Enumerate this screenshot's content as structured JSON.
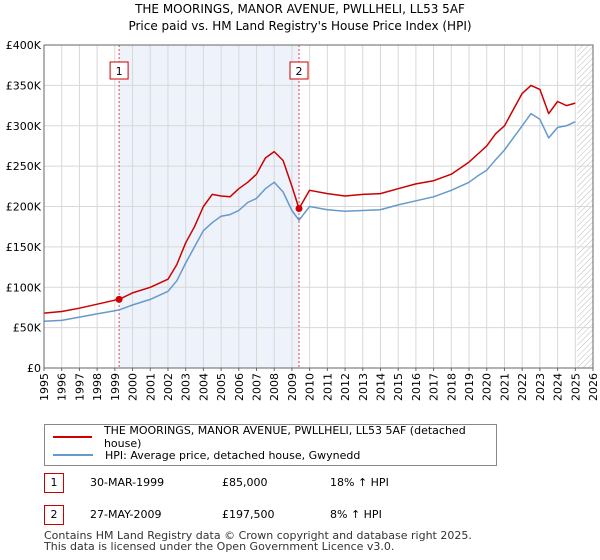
{
  "chart_data": {
    "type": "line",
    "title": "THE MOORINGS, MANOR AVENUE, PWLLHELI, LL53 5AF",
    "subtitle": "Price paid vs. HM Land Registry's House Price Index (HPI)",
    "xlabel": "",
    "ylabel": "",
    "xlim": [
      1995,
      2026
    ],
    "ylim": [
      0,
      400000
    ],
    "x_ticks": [
      "1995",
      "1996",
      "1997",
      "1998",
      "1999",
      "2000",
      "2001",
      "2002",
      "2003",
      "2004",
      "2005",
      "2006",
      "2007",
      "2008",
      "2009",
      "2010",
      "2011",
      "2012",
      "2013",
      "2014",
      "2015",
      "2016",
      "2017",
      "2018",
      "2019",
      "2020",
      "2021",
      "2022",
      "2023",
      "2024",
      "2025",
      "2026"
    ],
    "y_ticks": [
      {
        "value": 0,
        "label": "£0"
      },
      {
        "value": 50000,
        "label": "£50K"
      },
      {
        "value": 100000,
        "label": "£100K"
      },
      {
        "value": 150000,
        "label": "£150K"
      },
      {
        "value": 200000,
        "label": "£200K"
      },
      {
        "value": 250000,
        "label": "£250K"
      },
      {
        "value": 300000,
        "label": "£300K"
      },
      {
        "value": 350000,
        "label": "£350K"
      },
      {
        "value": 400000,
        "label": "£400K"
      }
    ],
    "grid": true,
    "shaded_period": [
      1999.24,
      2009.4
    ],
    "future_hatch_from": 2025.1,
    "series": [
      {
        "name": "THE MOORINGS, MANOR AVENUE, PWLLHELI, LL53 5AF (detached house)",
        "color": "#cc0000",
        "x": [
          1995.0,
          1996.0,
          1997.0,
          1998.0,
          1999.0,
          1999.24,
          2000.0,
          2001.0,
          2002.0,
          2002.5,
          2003.0,
          2003.5,
          2004.0,
          2004.5,
          2005.0,
          2005.5,
          2006.0,
          2006.5,
          2007.0,
          2007.5,
          2008.0,
          2008.5,
          2009.0,
          2009.4,
          2010.0,
          2011.0,
          2012.0,
          2013.0,
          2014.0,
          2015.0,
          2016.0,
          2017.0,
          2018.0,
          2019.0,
          2019.5,
          2020.0,
          2020.5,
          2021.0,
          2021.5,
          2022.0,
          2022.5,
          2023.0,
          2023.5,
          2024.0,
          2024.5,
          2025.0
        ],
        "y": [
          68000,
          70000,
          74000,
          79000,
          84000,
          85000,
          93000,
          100000,
          110000,
          128000,
          155000,
          175000,
          200000,
          215000,
          213000,
          212000,
          222000,
          230000,
          240000,
          260000,
          268000,
          257000,
          225000,
          197500,
          220000,
          216000,
          213000,
          215000,
          216000,
          222000,
          228000,
          232000,
          240000,
          255000,
          265000,
          275000,
          290000,
          300000,
          320000,
          340000,
          350000,
          345000,
          315000,
          330000,
          325000,
          328000
        ]
      },
      {
        "name": "HPI: Average price, detached house, Gwynedd",
        "color": "#6699cc",
        "x": [
          1995.0,
          1996.0,
          1997.0,
          1998.0,
          1999.0,
          1999.24,
          2000.0,
          2001.0,
          2002.0,
          2002.5,
          2003.0,
          2003.5,
          2004.0,
          2004.5,
          2005.0,
          2005.5,
          2006.0,
          2006.5,
          2007.0,
          2007.5,
          2008.0,
          2008.5,
          2009.0,
          2009.4,
          2010.0,
          2011.0,
          2012.0,
          2013.0,
          2014.0,
          2015.0,
          2016.0,
          2017.0,
          2018.0,
          2019.0,
          2019.5,
          2020.0,
          2020.5,
          2021.0,
          2021.5,
          2022.0,
          2022.5,
          2023.0,
          2023.5,
          2024.0,
          2024.5,
          2025.0
        ],
        "y": [
          58000,
          59000,
          63000,
          67000,
          71000,
          72000,
          78000,
          85000,
          95000,
          108000,
          130000,
          150000,
          170000,
          180000,
          188000,
          190000,
          195000,
          205000,
          210000,
          222000,
          230000,
          218000,
          195000,
          183000,
          200000,
          196000,
          194000,
          195000,
          196000,
          202000,
          207000,
          212000,
          220000,
          230000,
          238000,
          245000,
          258000,
          270000,
          285000,
          300000,
          315000,
          308000,
          285000,
          298000,
          300000,
          305000
        ]
      }
    ],
    "markers": [
      {
        "label": "1",
        "x": 1999.24,
        "y": 85000
      },
      {
        "label": "2",
        "x": 2009.4,
        "y": 197500
      }
    ]
  },
  "legend": {
    "items": [
      {
        "label": "THE MOORINGS, MANOR AVENUE, PWLLHELI, LL53 5AF (detached house)",
        "color": "#cc0000"
      },
      {
        "label": "HPI: Average price, detached house, Gwynedd",
        "color": "#6699cc"
      }
    ]
  },
  "transactions": [
    {
      "marker": "1",
      "date": "30-MAR-1999",
      "price": "£85,000",
      "hpi": "18% ↑ HPI"
    },
    {
      "marker": "2",
      "date": "27-MAY-2009",
      "price": "£197,500",
      "hpi": "8% ↑ HPI"
    }
  ],
  "footer": {
    "line1": "Contains HM Land Registry data © Crown copyright and database right 2025.",
    "line2": "This data is licensed under the Open Government Licence v3.0."
  }
}
